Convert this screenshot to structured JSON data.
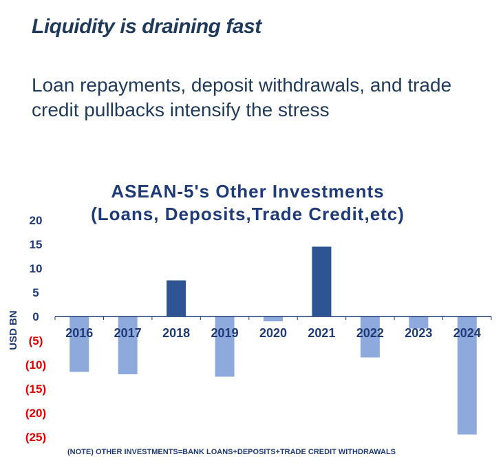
{
  "slide": {
    "headline": "Liquidity is draining fast",
    "subtitle": "Loan repayments, deposit withdrawals, and trade credit pullbacks intensify the stress"
  },
  "chart_data": {
    "type": "bar",
    "title": "ASEAN-5's Other Investments (Loans, Deposits,Trade Credit,etc)",
    "title_lines": [
      "ASEAN-5's Other Investments",
      "(Loans, Deposits,Trade Credit,etc)"
    ],
    "xlabel": "",
    "ylabel": "USD BN",
    "categories": [
      "2016",
      "2017",
      "2018",
      "2019",
      "2020",
      "2021",
      "2022",
      "2023",
      "2024"
    ],
    "values": [
      -11.5,
      -12,
      7.5,
      -12.5,
      -1,
      14.5,
      -8.5,
      -2.5,
      -24.5
    ],
    "ylim": [
      -25,
      20
    ],
    "yticks": [
      20,
      15,
      10,
      5,
      0,
      -5,
      -10,
      -15,
      -20,
      -25
    ],
    "ytick_labels": [
      "20",
      "15",
      "10",
      "5",
      "0",
      "(5)",
      "(10)",
      "(15)",
      "(20)",
      "(25)"
    ],
    "grid": false,
    "legend": "none",
    "note": "(NOTE) OTHER INVESTMENTS=BANK LOANS+DEPOSITS+TRADE CREDIT WITHDRAWALS",
    "colors": {
      "positive_bar": "#2e5494",
      "negative_bar": "#8eaadc",
      "positive_tick": "#1f3a78",
      "negative_tick": "#e00000",
      "axis": "#1f3a78"
    }
  }
}
